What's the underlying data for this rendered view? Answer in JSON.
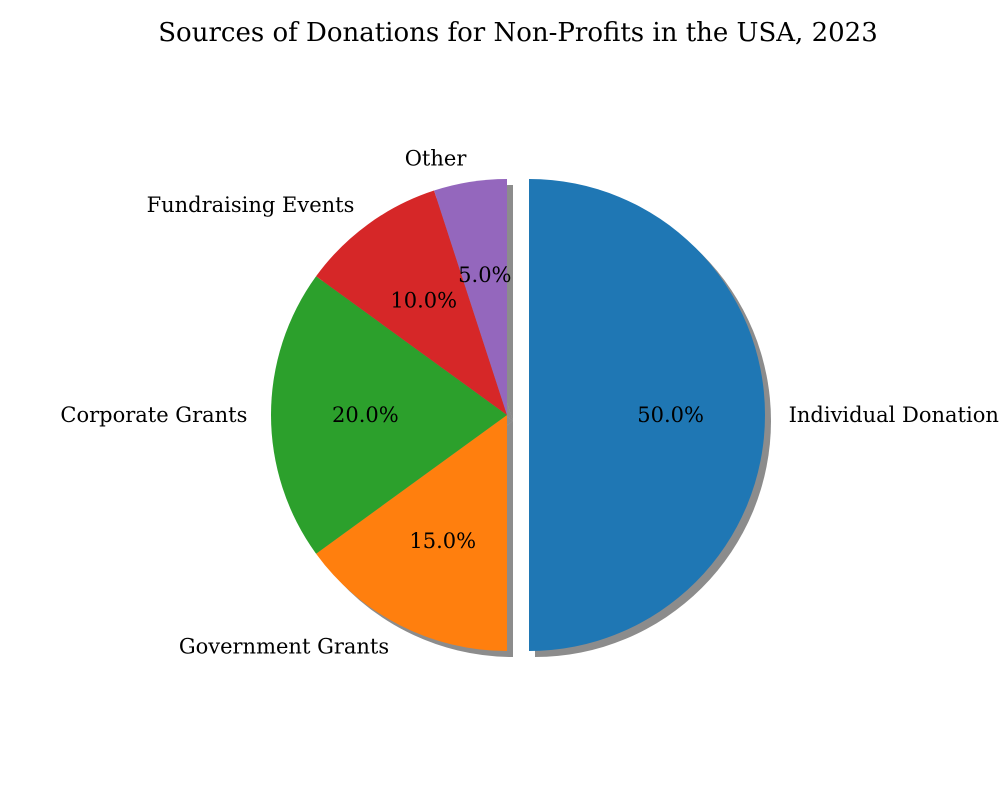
{
  "chart_data": {
    "type": "pie",
    "title": "Sources of Donations for Non-Profits in the USA, 2023",
    "labels": [
      "Individual Donations",
      "Government Grants",
      "Corporate Grants",
      "Fundraising Events",
      "Other"
    ],
    "values": [
      50.0,
      15.0,
      20.0,
      10.0,
      5.0
    ],
    "pct_labels": [
      "50.0%",
      "15.0%",
      "20.0%",
      "10.0%",
      "5.0%"
    ],
    "colors": [
      "#1f77b4",
      "#ff7f0e",
      "#2ca02c",
      "#d62728",
      "#9467bd"
    ],
    "start_angle_deg": 90,
    "direction": "clockwise",
    "exploded": [
      "Individual Donations"
    ],
    "shadow": true
  }
}
